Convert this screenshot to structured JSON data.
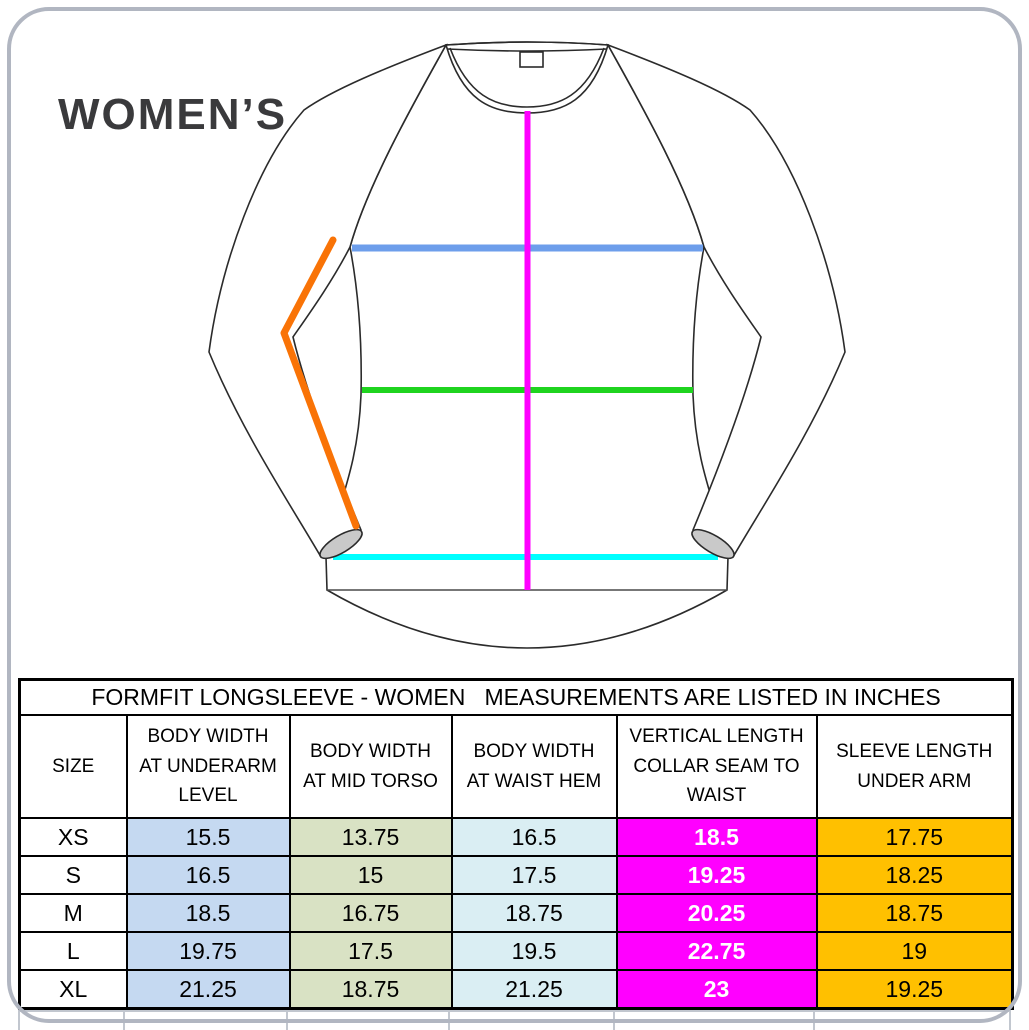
{
  "page_title": "WOMEN’S",
  "diagram": {
    "line_colors": {
      "underarm": "#6d9eeb",
      "mid_torso": "#1fd41f",
      "waist_hem": "#00ffff",
      "vertical": "#ff00ff",
      "sleeve": "#f97306"
    },
    "outline_color": "#2b2b2b",
    "cuff_fill": "#c9c9c9"
  },
  "table": {
    "title": "FORMFIT LONGSLEEVE - WOMEN   MEASUREMENTS ARE LISTED IN INCHES",
    "columns": [
      {
        "id": "size",
        "label_lines": [
          "SIZE"
        ],
        "bg": "#ffffff",
        "value_color": "#000000",
        "value_bold": false
      },
      {
        "id": "underarm",
        "label_lines": [
          "BODY WIDTH",
          "AT UNDERARM",
          "LEVEL"
        ],
        "bg": "#c5d9f1",
        "value_color": "#000000",
        "value_bold": false
      },
      {
        "id": "midtorso",
        "label_lines": [
          "BODY WIDTH",
          "AT MID TORSO"
        ],
        "bg": "#d9e2c4",
        "value_color": "#000000",
        "value_bold": false
      },
      {
        "id": "waisthem",
        "label_lines": [
          "BODY WIDTH",
          "AT WAIST HEM"
        ],
        "bg": "#daeef3",
        "value_color": "#000000",
        "value_bold": false
      },
      {
        "id": "vertical",
        "label_lines": [
          "VERTICAL LENGTH",
          "COLLAR SEAM TO",
          "WAIST"
        ],
        "bg": "#ff00ff",
        "value_color": "#ffffff",
        "value_bold": true
      },
      {
        "id": "sleeve",
        "label_lines": [
          "SLEEVE LENGTH",
          "UNDER ARM"
        ],
        "bg": "#ffc000",
        "value_color": "#000000",
        "value_bold": false
      }
    ],
    "rows": [
      {
        "size": "XS",
        "values": [
          "15.5",
          "13.75",
          "16.5",
          "18.5",
          "17.75"
        ]
      },
      {
        "size": "S",
        "values": [
          "16.5",
          "15",
          "17.5",
          "19.25",
          "18.25"
        ]
      },
      {
        "size": "M",
        "values": [
          "18.5",
          "16.75",
          "18.75",
          "20.25",
          "18.75"
        ]
      },
      {
        "size": "L",
        "values": [
          "19.75",
          "17.5",
          "19.5",
          "22.75",
          "19"
        ]
      },
      {
        "size": "XL",
        "values": [
          "21.25",
          "18.75",
          "21.25",
          "23",
          "19.25"
        ]
      }
    ]
  },
  "colors": {
    "card_border": "#b1b6c1",
    "title_text": "#3a3a3c",
    "table_border": "#000000",
    "ghost_border": "#c2c7cf"
  }
}
